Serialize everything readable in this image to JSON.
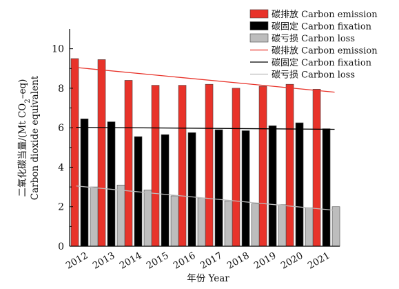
{
  "chart_data": {
    "type": "bar",
    "title": "",
    "categories": [
      "2012",
      "2013",
      "2014",
      "2015",
      "2016",
      "2017",
      "2018",
      "2019",
      "2020",
      "2021"
    ],
    "series": [
      {
        "name": "碳排放 Carbon emission",
        "color": "#e8332a",
        "values": [
          9.5,
          9.45,
          8.4,
          8.15,
          8.15,
          8.2,
          8.0,
          8.1,
          8.2,
          7.95
        ]
      },
      {
        "name": "碳固定 Carbon fixation",
        "color": "#000000",
        "values": [
          6.45,
          6.3,
          5.55,
          5.65,
          5.75,
          5.9,
          5.85,
          6.1,
          6.25,
          5.95
        ]
      },
      {
        "name": "碳亏损 Carbon loss",
        "color": "#bdbdbd",
        "values": [
          3.0,
          3.1,
          2.85,
          2.55,
          2.45,
          2.3,
          2.15,
          2.1,
          1.95,
          2.0
        ]
      }
    ],
    "trend_lines": [
      {
        "name": "碳排放 Carbon emission",
        "color": "#e8332a",
        "start": 9.05,
        "end": 7.8
      },
      {
        "name": "碳固定 Carbon fixation",
        "color": "#000000",
        "start": 6.02,
        "end": 5.92
      },
      {
        "name": "碳亏损 Carbon loss",
        "color": "#bdbdbd",
        "start": 3.05,
        "end": 1.82
      }
    ],
    "xlabel": "年份 Year",
    "ylabel_line1": "二氧化碳当量/(Mt CO",
    "ylabel_sub": "2",
    "ylabel_line1_end": "–eq)",
    "ylabel_line2": "Carbon dioxide equivalent",
    "ylim": [
      0,
      11
    ],
    "yticks": [
      "0",
      "2",
      "4",
      "6",
      "8",
      "10"
    ],
    "grid": false,
    "legend_position": "top-right"
  }
}
